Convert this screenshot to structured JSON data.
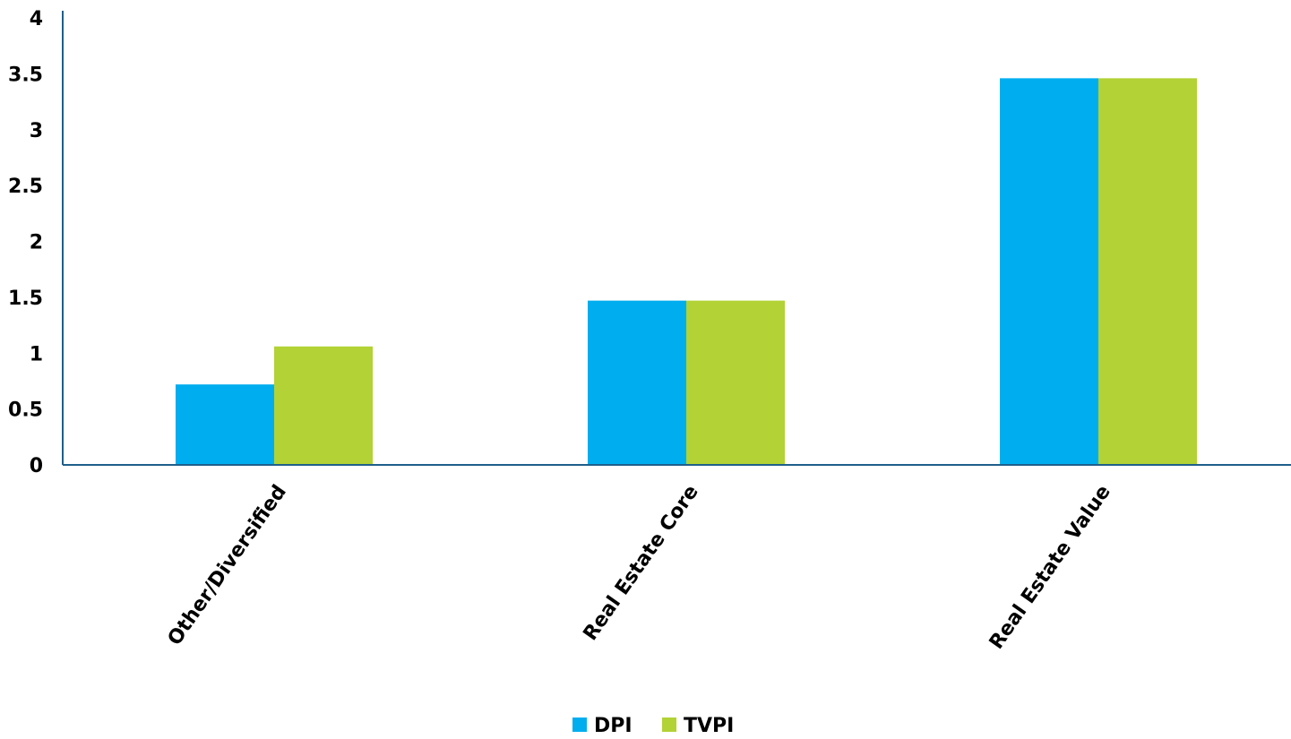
{
  "chart_data": {
    "type": "bar",
    "categories": [
      "Other/Diversified",
      "Real Estate Core",
      "Real Estate Value"
    ],
    "series": [
      {
        "name": "DPI",
        "color": "#00aeef",
        "values": [
          0.72,
          1.47,
          3.46
        ]
      },
      {
        "name": "TVPI",
        "color": "#b2d235",
        "values": [
          1.06,
          1.47,
          3.46
        ]
      }
    ],
    "y_ticks": [
      "0",
      "0.5",
      "1",
      "1.5",
      "2",
      "2.5",
      "3",
      "3.5",
      "4"
    ],
    "ylim": [
      0,
      4
    ],
    "grid": false,
    "axis_color": "#1f5f8b",
    "legend_position": "bottom-center"
  }
}
